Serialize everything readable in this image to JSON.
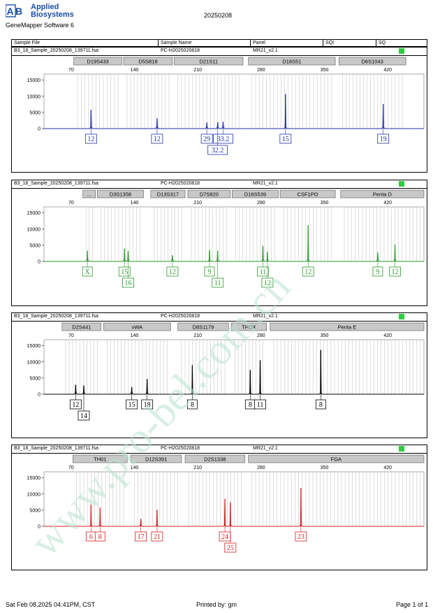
{
  "header": {
    "brand_line1": "Applied",
    "brand_line2": "Biosystems",
    "software": "GeneMapper Software 6",
    "run_date": "20250208"
  },
  "table_header": {
    "sample_file": "Sample File",
    "sample_name": "Sample Name",
    "panel": "Panel",
    "sqi": "SQI",
    "sq": "SQ"
  },
  "footer": {
    "printed_at": "Sat Feb 08,2025 04:41PM, CST",
    "printed_by": "Printed by: gm",
    "page": "Page 1 of 1"
  },
  "watermark_text": "www.pro-bel.com.cn",
  "colors": {
    "blue": "#1f2fa8",
    "green": "#2a9a2a",
    "black": "#000000",
    "red": "#d42020",
    "sq_ok": "#2ecc40",
    "marker_box": "#c8c8c8",
    "bin_line": "#c8c8c8",
    "watermark": "#b9e3cf"
  },
  "chart_data": [
    {
      "type": "electropherogram",
      "dye": "blue",
      "sample_file": "B3_18_Sample_20250208_139711.fsa",
      "sample_name": "PC-H2025020818",
      "panel": "MR21_v2.1",
      "xlim": [
        40,
        460
      ],
      "ylim": [
        0,
        16000
      ],
      "x_ticks": [
        70,
        140,
        210,
        280,
        350,
        420
      ],
      "y_ticks": [
        0,
        5000,
        10000,
        15000
      ],
      "markers": [
        {
          "name": "D19S433",
          "range": [
            73,
            126
          ]
        },
        {
          "name": "D5S818",
          "range": [
            128,
            182
          ]
        },
        {
          "name": "D21S11",
          "range": [
            184,
            260
          ]
        },
        {
          "name": "D18S51",
          "range": [
            266,
            362
          ]
        },
        {
          "name": "D6S1043",
          "range": [
            366,
            440
          ]
        }
      ],
      "peaks": [
        {
          "x": 92,
          "height": 5800
        },
        {
          "x": 165,
          "height": 3200
        },
        {
          "x": 220,
          "height": 1900
        },
        {
          "x": 232,
          "height": 2000
        },
        {
          "x": 238,
          "height": 2100
        },
        {
          "x": 307,
          "height": 10700
        },
        {
          "x": 415,
          "height": 7600
        }
      ],
      "alleles": [
        {
          "label": "12",
          "x": 92,
          "row": 1
        },
        {
          "label": "12",
          "x": 165,
          "row": 1
        },
        {
          "label": "29",
          "x": 220,
          "row": 1
        },
        {
          "label": "33.2",
          "x": 238,
          "row": 1
        },
        {
          "label": "32.2",
          "x": 232,
          "row": 2
        },
        {
          "label": "15",
          "x": 307,
          "row": 1
        },
        {
          "label": "19",
          "x": 415,
          "row": 1
        }
      ]
    },
    {
      "type": "electropherogram",
      "dye": "green",
      "sample_file": "B3_18_Sample_20250208_139711.fsa",
      "sample_name": "PC-H2025020818",
      "panel": "MR21_v2.1",
      "xlim": [
        40,
        460
      ],
      "ylim": [
        0,
        16000
      ],
      "x_ticks": [
        70,
        140,
        210,
        280,
        350,
        420
      ],
      "y_ticks": [
        0,
        5000,
        10000,
        15000
      ],
      "markers": [
        {
          "name": "...",
          "range": [
            83,
            97
          ]
        },
        {
          "name": "D3S1358",
          "range": [
            99,
            150
          ]
        },
        {
          "name": "D13S317",
          "range": [
            158,
            196
          ]
        },
        {
          "name": "D7S820",
          "range": [
            199,
            246
          ]
        },
        {
          "name": "D16S539",
          "range": [
            248,
            299
          ]
        },
        {
          "name": "CSF1PO",
          "range": [
            301,
            362
          ]
        },
        {
          "name": "Penta D",
          "range": [
            368,
            460
          ]
        }
      ],
      "peaks": [
        {
          "x": 88,
          "height": 3300
        },
        {
          "x": 129,
          "height": 4000
        },
        {
          "x": 133,
          "height": 3200
        },
        {
          "x": 182,
          "height": 1900
        },
        {
          "x": 223,
          "height": 3500
        },
        {
          "x": 232,
          "height": 3300
        },
        {
          "x": 282,
          "height": 4800
        },
        {
          "x": 287,
          "height": 3000
        },
        {
          "x": 332,
          "height": 11200
        },
        {
          "x": 409,
          "height": 2800
        },
        {
          "x": 428,
          "height": 5200
        }
      ],
      "alleles": [
        {
          "label": "X",
          "x": 88,
          "row": 1
        },
        {
          "label": "15",
          "x": 129,
          "row": 1
        },
        {
          "label": "16",
          "x": 133,
          "row": 2
        },
        {
          "label": "12",
          "x": 182,
          "row": 1
        },
        {
          "label": "9",
          "x": 223,
          "row": 1
        },
        {
          "label": "11",
          "x": 232,
          "row": 2
        },
        {
          "label": "11",
          "x": 282,
          "row": 1
        },
        {
          "label": "12",
          "x": 287,
          "row": 2
        },
        {
          "label": "12",
          "x": 332,
          "row": 1
        },
        {
          "label": "9",
          "x": 409,
          "row": 1
        },
        {
          "label": "12",
          "x": 428,
          "row": 1
        }
      ]
    },
    {
      "type": "electropherogram",
      "dye": "black",
      "sample_file": "B3_18_Sample_20250208_139711.fsa",
      "sample_name": "PC-H2025020818",
      "panel": "MR21_v2.1",
      "xlim": [
        40,
        460
      ],
      "ylim": [
        0,
        16000
      ],
      "x_ticks": [
        70,
        140,
        210,
        280,
        350,
        420
      ],
      "y_ticks": [
        0,
        5000,
        10000,
        15000
      ],
      "markers": [
        {
          "name": "D2S441",
          "range": [
            60,
            103
          ]
        },
        {
          "name": "vWA",
          "range": [
            106,
            180
          ]
        },
        {
          "name": "D8S1179",
          "range": [
            188,
            244
          ]
        },
        {
          "name": "TPOX",
          "range": [
            247,
            286
          ]
        },
        {
          "name": "Penta E",
          "range": [
            290,
            460
          ]
        }
      ],
      "peaks": [
        {
          "x": 75,
          "height": 2900
        },
        {
          "x": 84,
          "height": 2700
        },
        {
          "x": 137,
          "height": 2200
        },
        {
          "x": 154,
          "height": 4700
        },
        {
          "x": 204,
          "height": 9000
        },
        {
          "x": 268,
          "height": 7500
        },
        {
          "x": 279,
          "height": 10500
        },
        {
          "x": 346,
          "height": 13700
        }
      ],
      "alleles": [
        {
          "label": "12",
          "x": 75,
          "row": 1
        },
        {
          "label": "14",
          "x": 84,
          "row": 2
        },
        {
          "label": "15",
          "x": 137,
          "row": 1
        },
        {
          "label": "18",
          "x": 154,
          "row": 1
        },
        {
          "label": "8",
          "x": 204,
          "row": 1
        },
        {
          "label": "8",
          "x": 268,
          "row": 1
        },
        {
          "label": "11",
          "x": 279,
          "row": 1
        },
        {
          "label": "8",
          "x": 346,
          "row": 1
        }
      ]
    },
    {
      "type": "electropherogram",
      "dye": "red",
      "sample_file": "B3_18_Sample_20250208_139711.fsa",
      "sample_name": "PC-H2025020818",
      "panel": "MR21_v2.1",
      "xlim": [
        40,
        460
      ],
      "ylim": [
        0,
        16000
      ],
      "x_ticks": [
        70,
        140,
        210,
        280,
        350,
        420
      ],
      "y_ticks": [
        0,
        5000,
        10000,
        15000
      ],
      "markers": [
        {
          "name": "TH01",
          "range": [
            72,
            132
          ]
        },
        {
          "name": "D12S391",
          "range": [
            136,
            192
          ]
        },
        {
          "name": "D2S1338",
          "range": [
            196,
            262
          ]
        },
        {
          "name": "FGA",
          "range": [
            266,
            460
          ]
        }
      ],
      "peaks": [
        {
          "x": 92,
          "height": 6700
        },
        {
          "x": 102,
          "height": 5800
        },
        {
          "x": 147,
          "height": 2300
        },
        {
          "x": 165,
          "height": 5100
        },
        {
          "x": 240,
          "height": 8500
        },
        {
          "x": 246,
          "height": 7400
        },
        {
          "x": 324,
          "height": 11900
        }
      ],
      "alleles": [
        {
          "label": "6",
          "x": 92,
          "row": 1
        },
        {
          "label": "8",
          "x": 102,
          "row": 1
        },
        {
          "label": "17",
          "x": 147,
          "row": 1
        },
        {
          "label": "21",
          "x": 165,
          "row": 1
        },
        {
          "label": "24",
          "x": 240,
          "row": 1
        },
        {
          "label": "25",
          "x": 246,
          "row": 2
        },
        {
          "label": "23",
          "x": 324,
          "row": 1
        }
      ]
    }
  ]
}
